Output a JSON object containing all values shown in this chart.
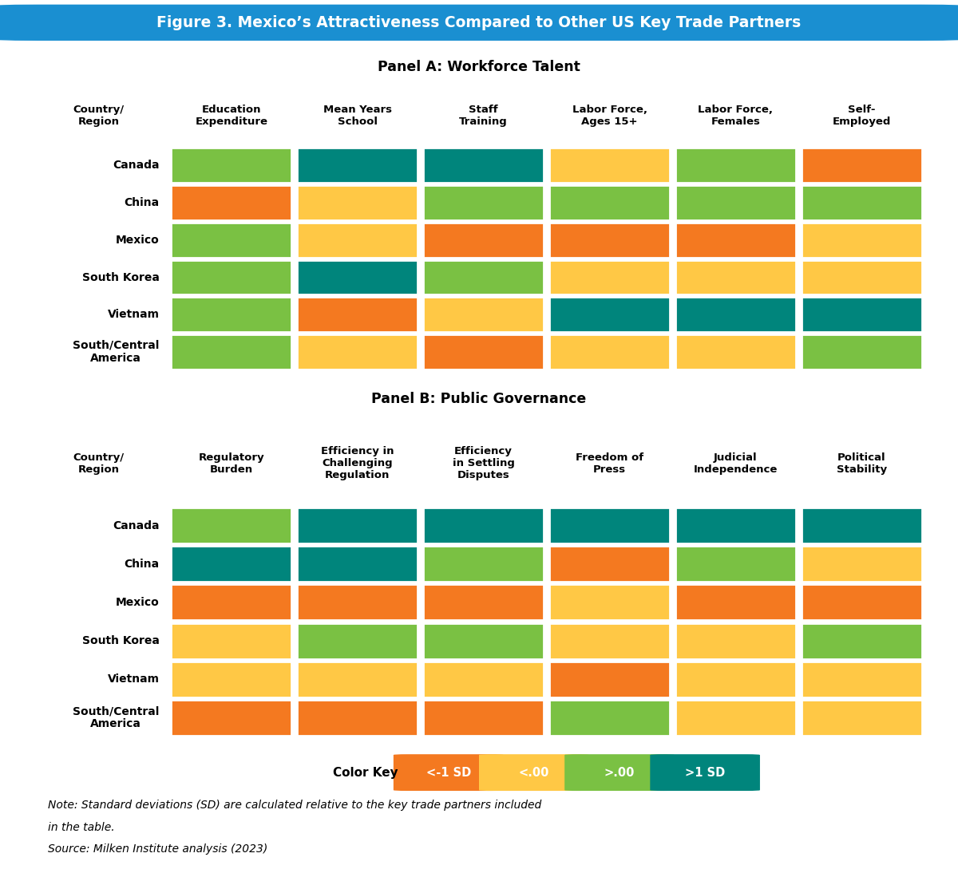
{
  "title": "Figure 3. Mexico’s Attractiveness Compared to Other US Key Trade Partners",
  "panel_a_title": "Panel A: Workforce Talent",
  "panel_b_title": "Panel B: Public Governance",
  "countries": [
    "Canada",
    "China",
    "Mexico",
    "South Korea",
    "Vietnam",
    "South/Central\nAmerica"
  ],
  "panel_a_columns": [
    "Education\nExpenditure",
    "Mean Years\nSchool",
    "Staff\nTraining",
    "Labor Force,\nAges 15+",
    "Labor Force,\nFemales",
    "Self-\nEmployed"
  ],
  "panel_b_columns": [
    "Regulatory\nBurden",
    "Efficiency in\nChallenging\nRegulation",
    "Efficiency\nin Settling\nDisputes",
    "Freedom of\nPress",
    "Judicial\nIndependence",
    "Political\nStability"
  ],
  "color_orange": "#F47920",
  "color_yellow": "#FFC845",
  "color_light_green": "#7AC143",
  "color_teal": "#00857C",
  "color_key_labels": [
    "<-1 SD",
    "<.00",
    ">.00",
    ">1 SD"
  ],
  "panel_a_data": [
    [
      "light_green",
      "teal",
      "teal",
      "yellow",
      "light_green",
      "orange"
    ],
    [
      "orange",
      "yellow",
      "light_green",
      "light_green",
      "light_green",
      "light_green"
    ],
    [
      "light_green",
      "yellow",
      "orange",
      "orange",
      "orange",
      "yellow"
    ],
    [
      "light_green",
      "teal",
      "light_green",
      "yellow",
      "yellow",
      "yellow"
    ],
    [
      "light_green",
      "orange",
      "yellow",
      "teal",
      "teal",
      "teal"
    ],
    [
      "light_green",
      "yellow",
      "orange",
      "yellow",
      "yellow",
      "light_green"
    ]
  ],
  "panel_b_data": [
    [
      "light_green",
      "teal",
      "teal",
      "teal",
      "teal",
      "teal"
    ],
    [
      "teal",
      "teal",
      "light_green",
      "orange",
      "light_green",
      "yellow"
    ],
    [
      "orange",
      "orange",
      "orange",
      "yellow",
      "orange",
      "orange"
    ],
    [
      "yellow",
      "light_green",
      "light_green",
      "yellow",
      "yellow",
      "light_green"
    ],
    [
      "yellow",
      "yellow",
      "yellow",
      "orange",
      "yellow",
      "yellow"
    ],
    [
      "orange",
      "orange",
      "orange",
      "light_green",
      "yellow",
      "yellow"
    ]
  ],
  "note_line1": "Note: Standard deviations (SD) are calculated relative to the key trade partners included",
  "note_line2": "in the table.",
  "note_line3": "Source: Milken Institute analysis (2023)",
  "header_label": "Country/\nRegion",
  "title_bg_color": "#1A8FD1",
  "title_text_color": "#FFFFFF",
  "background_color": "#FFFFFF"
}
